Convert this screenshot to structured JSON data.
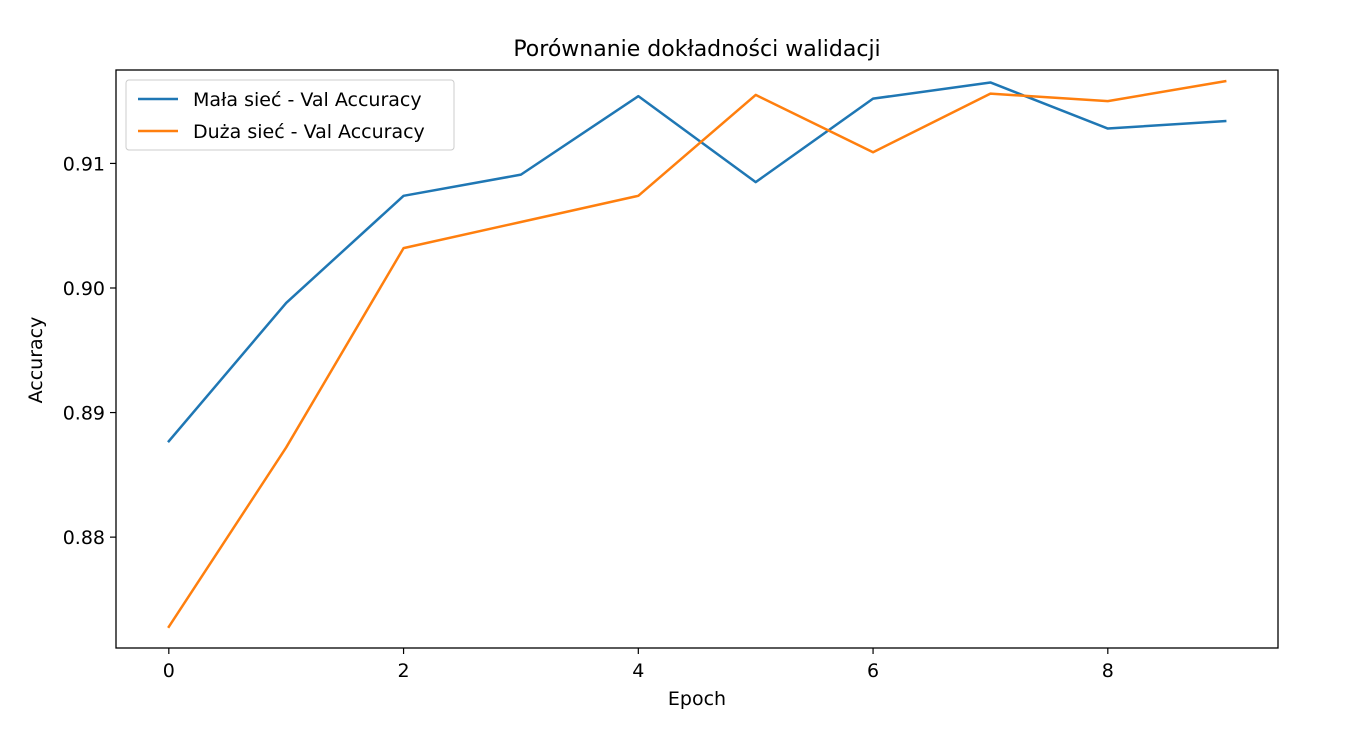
{
  "chart_data": {
    "type": "line",
    "title": "Porównanie dokładności walidacji",
    "xlabel": "Epoch",
    "ylabel": "Accuracy",
    "x": [
      0,
      1,
      2,
      3,
      4,
      5,
      6,
      7,
      8,
      9
    ],
    "xlim": [
      -0.45,
      9.45
    ],
    "ylim": [
      0.8711,
      0.9175
    ],
    "xticks": [
      0,
      2,
      4,
      6,
      8
    ],
    "yticks": [
      0.88,
      0.89,
      0.9,
      0.91
    ],
    "xtick_labels": [
      "0",
      "2",
      "4",
      "6",
      "8"
    ],
    "ytick_labels": [
      "0.88",
      "0.89",
      "0.90",
      "0.91"
    ],
    "grid": false,
    "legend_position": "top-left",
    "series": [
      {
        "name": "Mała sieć - Val Accuracy",
        "color": "#1f77b4",
        "values": [
          0.8877,
          0.8988,
          0.9074,
          0.9091,
          0.9154,
          0.9085,
          0.9152,
          0.9165,
          0.9128,
          0.9134
        ]
      },
      {
        "name": "Duża sieć - Val Accuracy",
        "color": "#ff7f0e",
        "values": [
          0.8728,
          0.8872,
          0.9032,
          0.9053,
          0.9074,
          0.9155,
          0.9109,
          0.9156,
          0.915,
          0.9166
        ]
      }
    ]
  }
}
